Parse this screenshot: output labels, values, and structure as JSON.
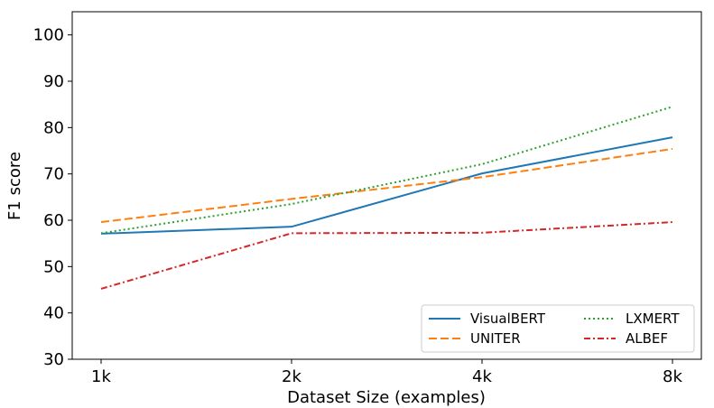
{
  "chart_data": {
    "type": "line",
    "title": "",
    "xlabel": "Dataset Size (examples)",
    "ylabel": "F1 score",
    "categories": [
      "1k",
      "2k",
      "4k",
      "8k"
    ],
    "ylim": [
      30,
      105
    ],
    "yticks": [
      30,
      40,
      50,
      60,
      70,
      80,
      90,
      100
    ],
    "grid": false,
    "legend_position": "lower-right",
    "series": [
      {
        "name": "VisualBERT",
        "values": [
          57.1,
          58.6,
          70.1,
          77.9
        ],
        "color": "#1f77b4",
        "style": "solid"
      },
      {
        "name": "UNITER",
        "values": [
          59.6,
          64.6,
          69.3,
          75.4
        ],
        "color": "#ff7f0e",
        "style": "dashed"
      },
      {
        "name": "LXMERT",
        "values": [
          57.2,
          63.5,
          72.1,
          84.5
        ],
        "color": "#2ca02c",
        "style": "dotted"
      },
      {
        "name": "ALBEF",
        "values": [
          45.2,
          57.2,
          57.3,
          59.6
        ],
        "color": "#d62728",
        "style": "dashdot"
      }
    ]
  }
}
